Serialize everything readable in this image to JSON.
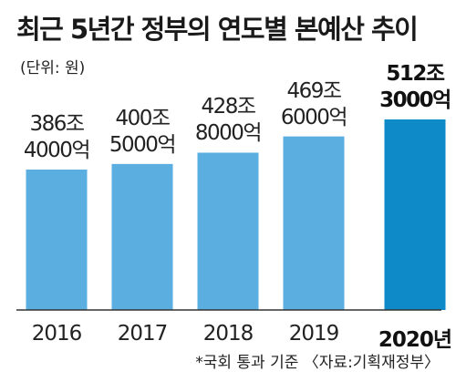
{
  "title": "최근 5년간 정부의 연도별 본예산 추이",
  "unit_note": "(단위: 원)",
  "footnote": "*국회 통과 기준 〈자료:기획재정부〉",
  "colors": {
    "bar": "#5aaee0",
    "highlight_bar": "#0e8ac8",
    "baseline": "#333333"
  },
  "chart_data": {
    "type": "bar",
    "categories": [
      "2016",
      "2017",
      "2018",
      "2019",
      "2020년"
    ],
    "values": [
      386.4,
      400.5,
      428.8,
      469.6,
      512.3
    ],
    "value_labels": [
      [
        "386조",
        "4000억"
      ],
      [
        "400조",
        "5000억"
      ],
      [
        "428조",
        "8000억"
      ],
      [
        "469조",
        "6000억"
      ],
      [
        "512조",
        "3000억"
      ]
    ],
    "highlight_index": 4,
    "unit": "조원",
    "xlabel": "",
    "ylabel": "",
    "legend": "none",
    "grid": false
  }
}
